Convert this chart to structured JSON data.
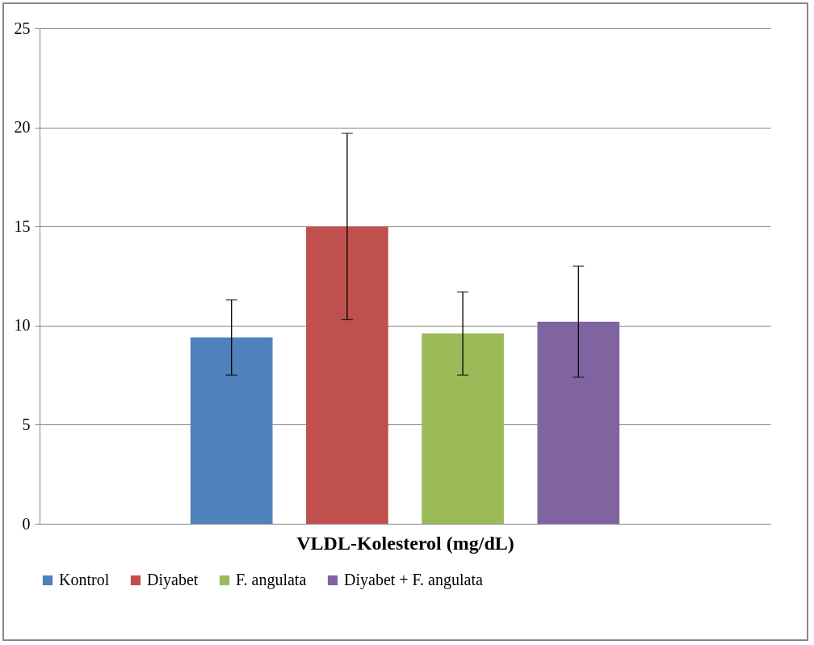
{
  "chart_data": {
    "type": "bar",
    "xlabel": "VLDL-Kolesterol (mg/dL)",
    "categories": [
      null
    ],
    "series": [
      {
        "name": "Kontrol",
        "color": "#4f81bd",
        "values": [
          9.4
        ],
        "errors": [
          1.9
        ]
      },
      {
        "name": "Diyabet",
        "color": "#c0504d",
        "values": [
          15.0
        ],
        "errors": [
          4.7
        ]
      },
      {
        "name": "F. angulata",
        "color": "#9bbb59",
        "values": [
          9.6
        ],
        "errors": [
          2.1
        ]
      },
      {
        "name": "Diyabet + F. angulata",
        "color": "#8064a2",
        "values": [
          10.2
        ],
        "errors": [
          2.8
        ]
      }
    ],
    "ylim": [
      0,
      25
    ],
    "yticks": [
      0,
      5,
      10,
      15,
      20,
      25
    ],
    "grid": "y",
    "legend": "bottom"
  }
}
